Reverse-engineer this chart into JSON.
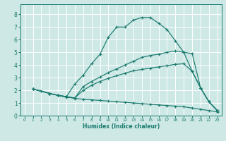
{
  "xlabel": "Humidex (Indice chaleur)",
  "bg_color": "#cde8e5",
  "line_color": "#1a7a6e",
  "grid_color": "#ffffff",
  "xlim": [
    -0.5,
    23.5
  ],
  "ylim": [
    0,
    8.8
  ],
  "xticks": [
    0,
    1,
    2,
    3,
    4,
    5,
    6,
    7,
    8,
    9,
    10,
    11,
    12,
    13,
    14,
    15,
    16,
    17,
    18,
    19,
    20,
    21,
    22,
    23
  ],
  "yticks": [
    0,
    1,
    2,
    3,
    4,
    5,
    6,
    7,
    8
  ],
  "lines": [
    {
      "x": [
        1,
        2,
        3,
        4,
        5,
        6,
        7,
        8,
        9,
        10,
        11,
        12,
        13,
        14,
        15,
        16,
        17,
        18,
        19,
        20,
        21,
        22,
        23
      ],
      "y": [
        2.1,
        1.95,
        1.75,
        1.6,
        1.5,
        2.5,
        3.2,
        4.1,
        4.85,
        6.2,
        7.0,
        7.0,
        7.55,
        7.75,
        7.75,
        7.3,
        6.8,
        5.9,
        5.0,
        3.5,
        2.2,
        1.1,
        0.4
      ]
    },
    {
      "x": [
        1,
        3,
        4,
        5,
        6,
        7,
        8,
        9,
        10,
        11,
        12,
        13,
        14,
        15,
        16,
        17,
        18,
        19,
        20,
        21,
        22,
        23
      ],
      "y": [
        2.1,
        1.75,
        1.6,
        1.45,
        1.4,
        2.3,
        2.7,
        3.05,
        3.4,
        3.7,
        4.0,
        4.3,
        4.6,
        4.75,
        4.85,
        5.0,
        5.1,
        5.0,
        4.9,
        2.2,
        1.1,
        0.4
      ]
    },
    {
      "x": [
        1,
        3,
        4,
        5,
        6,
        7,
        8,
        9,
        10,
        11,
        12,
        13,
        14,
        15,
        16,
        17,
        18,
        19,
        20,
        21,
        22,
        23
      ],
      "y": [
        2.1,
        1.75,
        1.6,
        1.5,
        1.4,
        2.0,
        2.4,
        2.7,
        2.95,
        3.15,
        3.35,
        3.55,
        3.65,
        3.75,
        3.85,
        3.95,
        4.05,
        4.1,
        3.5,
        2.2,
        1.1,
        0.4
      ]
    },
    {
      "x": [
        1,
        3,
        4,
        5,
        6,
        7,
        8,
        9,
        10,
        11,
        12,
        13,
        14,
        15,
        16,
        17,
        18,
        19,
        20,
        21,
        22,
        23
      ],
      "y": [
        2.1,
        1.75,
        1.6,
        1.5,
        1.35,
        1.3,
        1.25,
        1.2,
        1.15,
        1.1,
        1.05,
        1.0,
        0.95,
        0.9,
        0.85,
        0.8,
        0.75,
        0.7,
        0.6,
        0.5,
        0.4,
        0.3
      ]
    }
  ]
}
